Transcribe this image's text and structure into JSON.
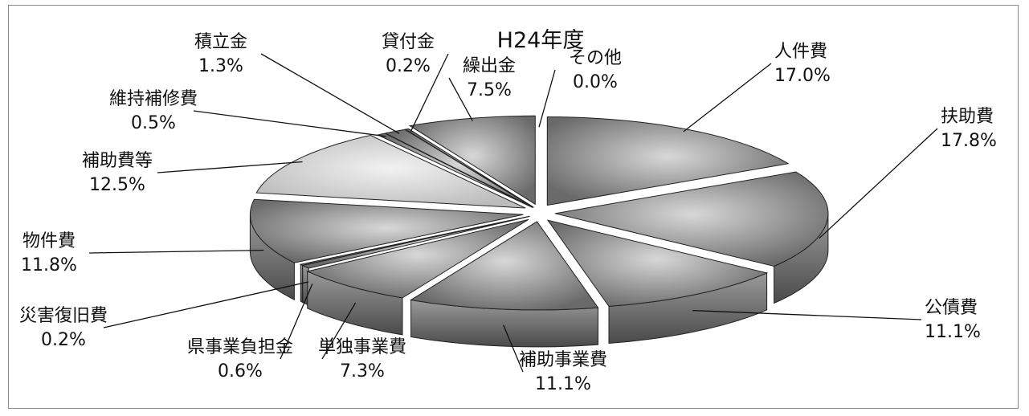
{
  "chart_data": {
    "type": "pie",
    "title": "H24年度",
    "slices": [
      {
        "name": "人件費",
        "value": 17.0,
        "label": "17.0%"
      },
      {
        "name": "扶助費",
        "value": 17.8,
        "label": "17.8%"
      },
      {
        "name": "公債費",
        "value": 11.1,
        "label": "11.1%"
      },
      {
        "name": "補助事業費",
        "value": 11.1,
        "label": "11.1%"
      },
      {
        "name": "単独事業費",
        "value": 7.3,
        "label": "7.3%"
      },
      {
        "name": "県事業負担金",
        "value": 0.6,
        "label": "0.6%"
      },
      {
        "name": "災害復旧費",
        "value": 0.2,
        "label": "0.2%"
      },
      {
        "name": "物件費",
        "value": 11.8,
        "label": "11.8%"
      },
      {
        "name": "補助費等",
        "value": 12.5,
        "label": "12.5%"
      },
      {
        "name": "維持補修費",
        "value": 0.5,
        "label": "0.5%"
      },
      {
        "name": "積立金",
        "value": 1.3,
        "label": "1.3%"
      },
      {
        "name": "貸付金",
        "value": 0.2,
        "label": "0.2%"
      },
      {
        "name": "繰出金",
        "value": 7.5,
        "label": "7.5%"
      },
      {
        "name": "その他",
        "value": 0.0,
        "label": "0.0%"
      }
    ]
  }
}
